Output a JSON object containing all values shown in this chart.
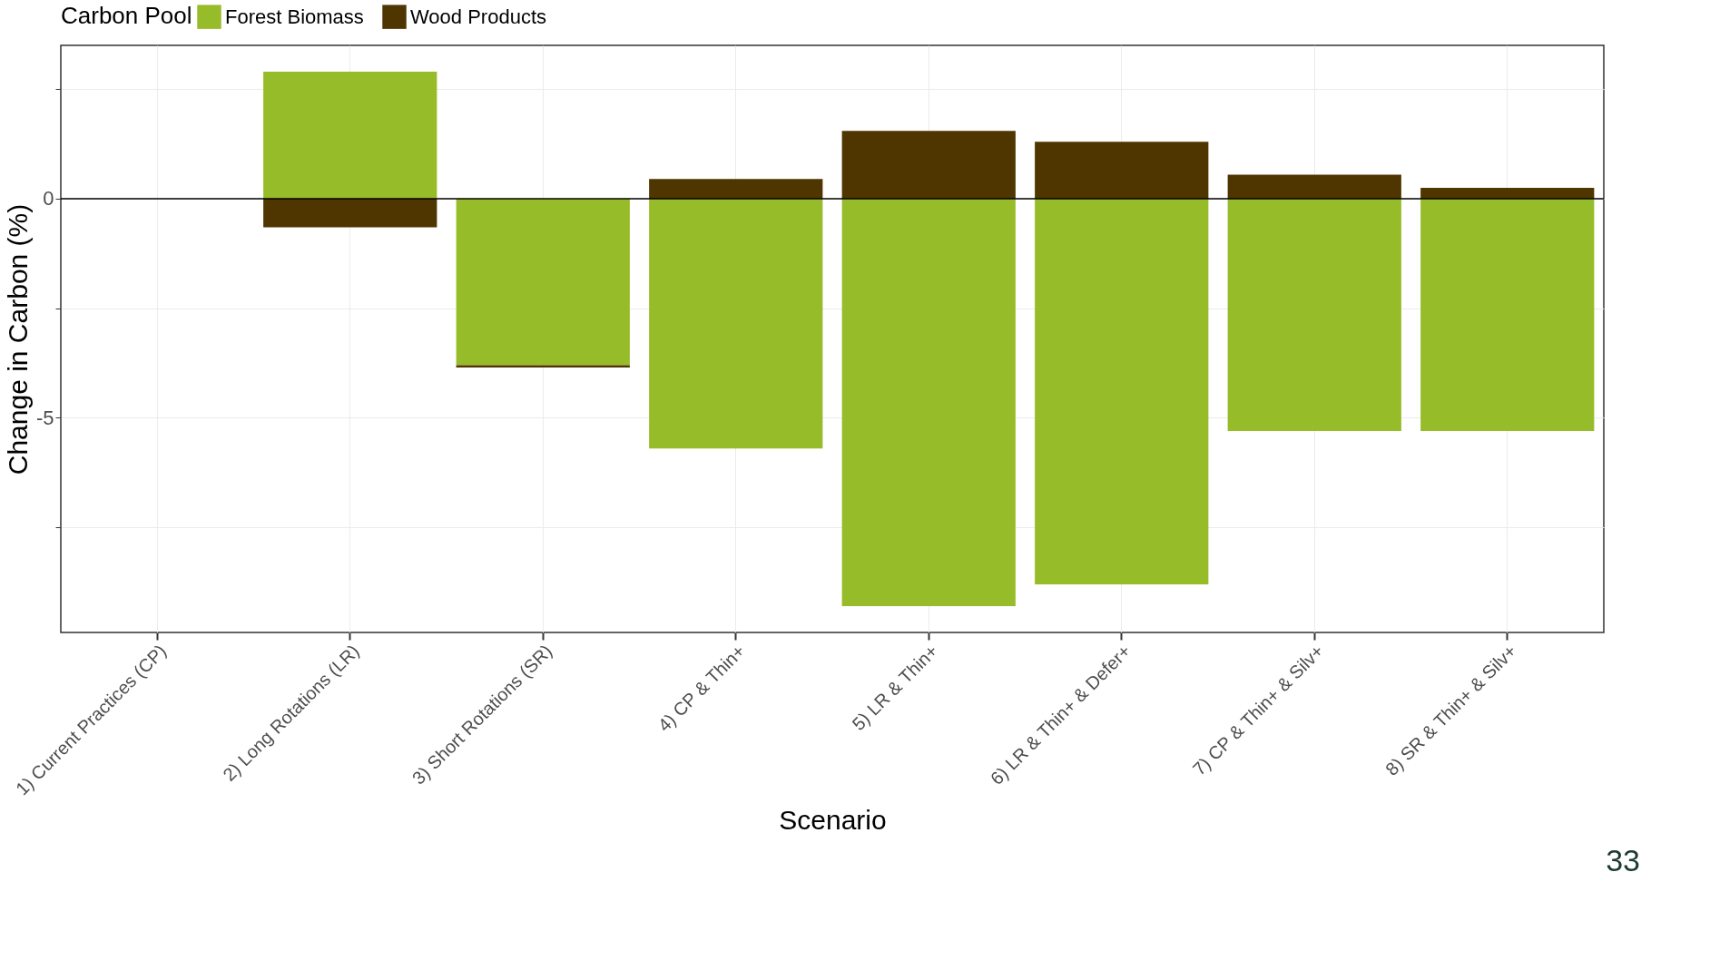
{
  "chart_data": {
    "type": "bar",
    "stacked": true,
    "xlabel": "Scenario",
    "ylabel": "Change in Carbon (%)",
    "legend_title": "Carbon Pool",
    "categories": [
      "1) Current Practices (CP)",
      "2) Long Rotations (LR)",
      "3) Short Rotations (SR)",
      "4) CP & Thin+",
      "5) LR & Thin+",
      "6) LR & Thin+ & Defer+",
      "7) CP & Thin+ & Silv+",
      "8) SR & Thin+ & Silv+"
    ],
    "series": [
      {
        "name": "Forest Biomass",
        "color": "#97bc29",
        "values": [
          0,
          2.9,
          -3.8,
          -5.7,
          -9.3,
          -8.8,
          -5.3,
          -5.3
        ]
      },
      {
        "name": "Wood Products",
        "color": "#4f3500",
        "values": [
          0,
          -0.65,
          -0.05,
          0.45,
          1.55,
          1.3,
          0.55,
          0.25
        ]
      }
    ],
    "ylim": [
      -9.9,
      3.5
    ],
    "yticks": [
      {
        "value": -7.5,
        "label": null
      },
      -5,
      {
        "value": -2.5,
        "label": null
      },
      0,
      {
        "value": 2.5,
        "label": null
      }
    ],
    "grid": true,
    "legend": "top",
    "ref_lines": [
      {
        "axis": "y",
        "value": 0,
        "color": "#000000"
      }
    ],
    "annotations": [
      "33"
    ]
  }
}
